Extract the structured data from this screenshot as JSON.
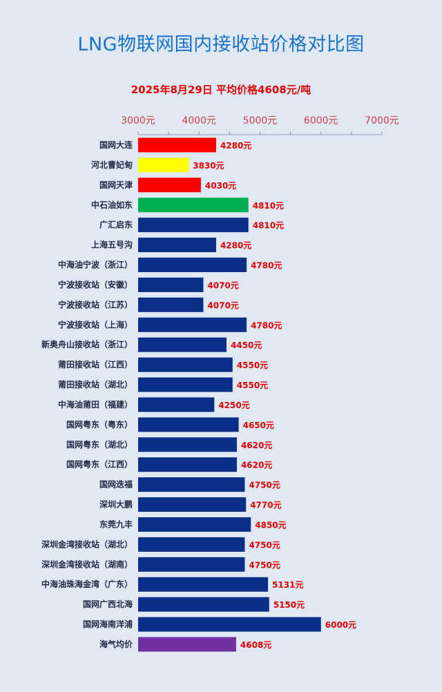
{
  "header": {
    "title": "LNG物联网国内接收站价格对比图",
    "subtitle": "2025年8月29日 平均价格4608元/吨"
  },
  "colors": {
    "background": "#dfe8f3",
    "title": "#1a73c9",
    "subtitle": "#e00000",
    "bar_default": "#0a2f86",
    "value_label": "#e00000",
    "tick_label": "#d04040"
  },
  "chart_data": {
    "type": "bar",
    "orientation": "horizontal",
    "title": "LNG物联网国内接收站价格对比图",
    "subtitle": "2025年8月29日 平均价格4608元/吨",
    "xlim": [
      3000,
      7000
    ],
    "xticks": [
      3000,
      4000,
      5000,
      6000,
      7000
    ],
    "xtick_labels": [
      "3000元",
      "4000元",
      "5000元",
      "6000元",
      "7000元"
    ],
    "axis_position": "top",
    "grid": false,
    "categories": [
      "国网大连",
      "河北曹妃甸",
      "国网天津",
      "中石油如东",
      "广汇启东",
      "上海五号沟",
      "中海油宁波（浙江）",
      "宁波接收站（安徽）",
      "宁波接收站（江苏）",
      "宁波接收站（上海）",
      "新奥舟山接收站（浙江）",
      "莆田接收站（江西）",
      "莆田接收站（湖北）",
      "中海油莆田（福建）",
      "国网粤东（粤东）",
      "国网粤东（湖北）",
      "国网粤东（江西）",
      "国网迭福",
      "深圳大鹏",
      "东莞九丰",
      "深圳金湾接收站（湖北）",
      "深圳金湾接收站（湖南）",
      "中海油珠海金湾（广东）",
      "国网广西北海",
      "国网海南洋浦",
      "海气均价"
    ],
    "values": [
      4280,
      3830,
      4030,
      4810,
      4810,
      4280,
      4780,
      4070,
      4070,
      4780,
      4450,
      4550,
      4550,
      4250,
      4650,
      4620,
      4620,
      4750,
      4770,
      4850,
      4750,
      4750,
      5131,
      5150,
      6000,
      4608
    ],
    "value_labels": [
      "4280元",
      "3830元",
      "4030元",
      "4810元",
      "4810元",
      "4280元",
      "4780元",
      "4070元",
      "4070元",
      "4780元",
      "4450元",
      "4550元",
      "4550元",
      "4250元",
      "4650元",
      "4620元",
      "4620元",
      "4750元",
      "4770元",
      "4850元",
      "4750元",
      "4750元",
      "5131元",
      "5150元",
      "6000元",
      "4608元"
    ],
    "bar_colors": [
      "#ff0000",
      "#ffff00",
      "#ff0000",
      "#00b050",
      "#0a2f86",
      "#0a2f86",
      "#0a2f86",
      "#0a2f86",
      "#0a2f86",
      "#0a2f86",
      "#0a2f86",
      "#0a2f86",
      "#0a2f86",
      "#0a2f86",
      "#0a2f86",
      "#0a2f86",
      "#0a2f86",
      "#0a2f86",
      "#0a2f86",
      "#0a2f86",
      "#0a2f86",
      "#0a2f86",
      "#0a2f86",
      "#0a2f86",
      "#0a2f86",
      "#7030a0"
    ]
  }
}
